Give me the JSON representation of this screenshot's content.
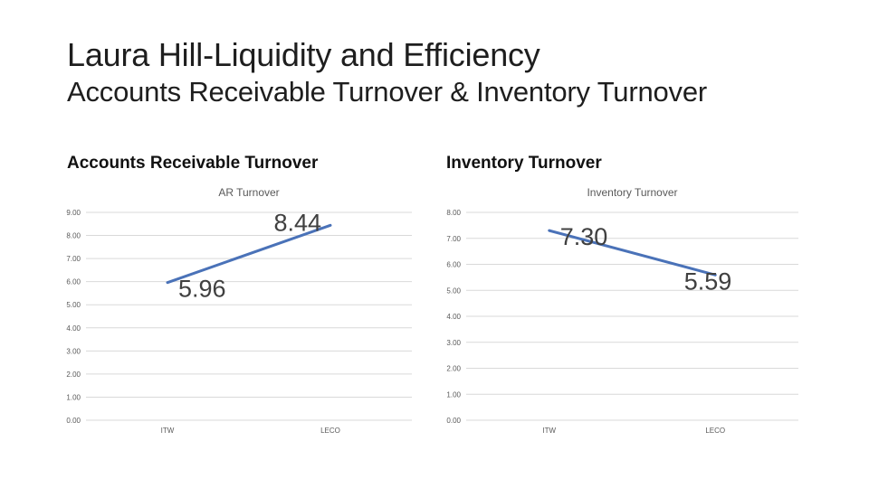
{
  "slide": {
    "title": "Laura Hill-Liquidity and Efficiency",
    "subtitle": "Accounts Receivable  Turnover & Inventory Turnover"
  },
  "sections": {
    "ar_heading": "Accounts Receivable Turnover",
    "inv_heading": "Inventory Turnover"
  },
  "colors": {
    "series": "#4a72b8",
    "grid": "#d9d9d9"
  },
  "chart_data": [
    {
      "id": "ar",
      "type": "line",
      "title": "AR Turnover",
      "categories": [
        "ITW",
        "LECO"
      ],
      "values": [
        5.96,
        8.44
      ],
      "data_labels": [
        "5.96",
        "8.44"
      ],
      "yticks": [
        "0.00",
        "1.00",
        "2.00",
        "3.00",
        "4.00",
        "5.00",
        "6.00",
        "7.00",
        "8.00",
        "9.00"
      ],
      "ylim": [
        0,
        9
      ],
      "grid": true,
      "legend": "none"
    },
    {
      "id": "inv",
      "type": "line",
      "title": "Inventory Turnover",
      "categories": [
        "ITW",
        "LECO"
      ],
      "values": [
        7.3,
        5.59
      ],
      "data_labels": [
        "7.30",
        "5.59"
      ],
      "yticks": [
        "0.00",
        "1.00",
        "2.00",
        "3.00",
        "4.00",
        "5.00",
        "6.00",
        "7.00",
        "8.00"
      ],
      "ylim": [
        0,
        8
      ],
      "grid": true,
      "legend": "none"
    }
  ]
}
